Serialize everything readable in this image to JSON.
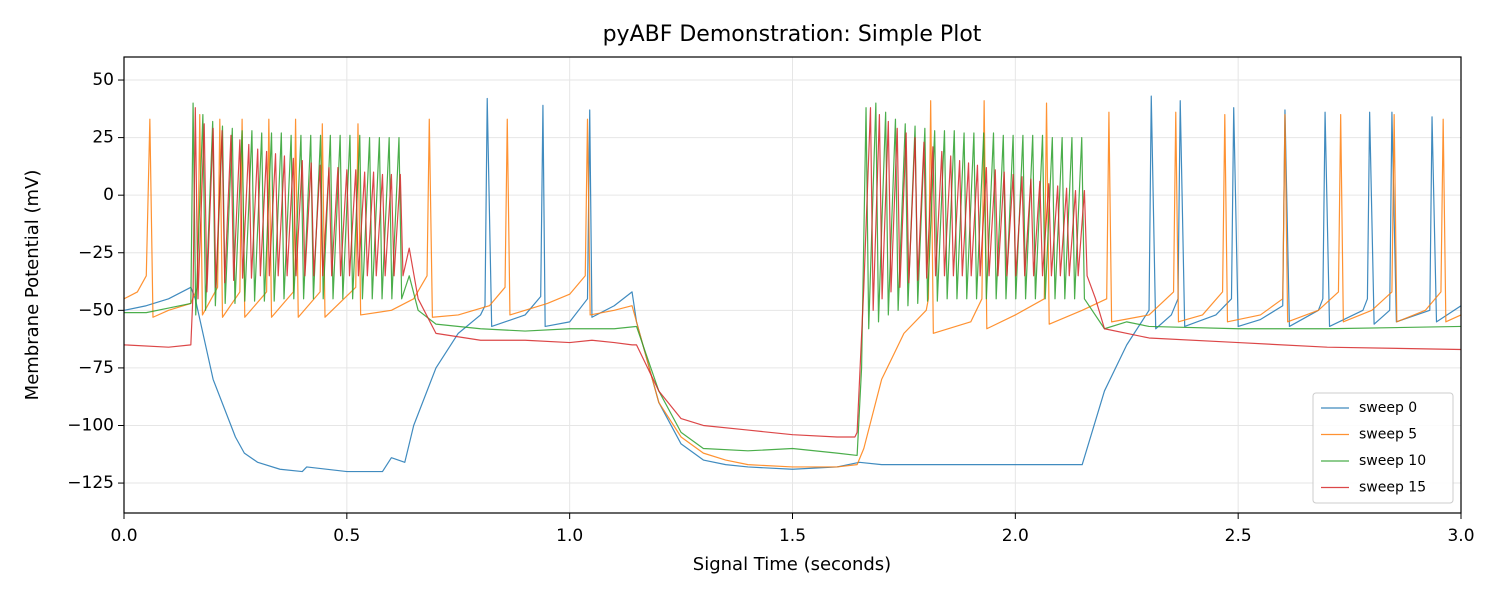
{
  "chart_data": {
    "type": "line",
    "title": "pyABF Demonstration: Simple Plot",
    "x_label": "Signal Time (seconds)",
    "y_label": "Membrane Potential (mV)",
    "xlim": [
      0,
      3
    ],
    "ylim": [
      -138,
      60
    ],
    "xticks": [
      {
        "value": 0,
        "label": "0.0"
      },
      0.5,
      {
        "value": 1,
        "label": "1.0"
      },
      1.5,
      {
        "value": 2,
        "label": "2.0"
      },
      2.5,
      {
        "value": 3,
        "label": "3.0"
      }
    ],
    "yticks": [
      {
        "value": -125,
        "label": "−125"
      },
      {
        "value": -100,
        "label": "−100"
      },
      {
        "value": -75,
        "label": "−75"
      },
      {
        "value": -50,
        "label": "−50"
      },
      {
        "value": -25,
        "label": "−25"
      },
      0,
      25,
      50
    ],
    "grid": true,
    "legend": "lower right",
    "series": [
      {
        "name": "sweep 0",
        "color": "#1f77b4",
        "x": [
          0,
          0.05,
          0.1,
          0.15,
          0.16,
          0.2,
          0.25,
          0.27,
          0.3,
          0.35,
          0.4,
          0.41,
          0.5,
          0.58,
          0.6,
          0.63,
          0.65,
          0.7,
          0.75,
          0.8,
          0.81,
          0.815,
          0.825,
          0.9,
          0.935,
          0.94,
          0.945,
          1.0,
          1.04,
          1.045,
          1.05,
          1.1,
          1.14,
          1.15,
          1.2,
          1.25,
          1.3,
          1.35,
          1.4,
          1.5,
          1.6,
          1.65,
          1.7,
          1.8,
          1.9,
          2.0,
          2.1,
          2.15,
          2.2,
          2.25,
          2.3,
          2.305,
          2.315,
          2.35,
          2.365,
          2.37,
          2.38,
          2.45,
          2.485,
          2.49,
          2.5,
          2.55,
          2.6,
          2.605,
          2.615,
          2.68,
          2.69,
          2.695,
          2.705,
          2.78,
          2.79,
          2.795,
          2.805,
          2.84,
          2.845,
          2.855,
          2.93,
          2.935,
          2.945,
          3.0
        ],
        "values": [
          -50,
          -48,
          -45,
          -40,
          -45,
          -80,
          -105,
          -112,
          -116,
          -119,
          -120,
          -118,
          -120,
          -120,
          -114,
          -116,
          -100,
          -75,
          -60,
          -52,
          -48,
          42,
          -57,
          -52,
          -44,
          39,
          -57,
          -55,
          -45,
          37,
          -53,
          -48,
          -42,
          -55,
          -90,
          -108,
          -115,
          -117,
          -118,
          -119,
          -118,
          -116,
          -117,
          -117,
          -117,
          -117,
          -117,
          -117,
          -85,
          -65,
          -50,
          43,
          -58,
          -52,
          -45,
          41,
          -57,
          -52,
          -45,
          38,
          -57,
          -54,
          -48,
          37,
          -57,
          -50,
          -45,
          36,
          -57,
          -50,
          -45,
          36,
          -56,
          -50,
          36,
          -55,
          -50,
          34,
          -55,
          -48
        ]
      },
      {
        "name": "sweep 5",
        "color": "#ff7f0e",
        "x": [
          0,
          0.03,
          0.05,
          0.058,
          0.065,
          0.1,
          0.15,
          0.165,
          0.17,
          0.176,
          0.21,
          0.215,
          0.221,
          0.26,
          0.265,
          0.271,
          0.32,
          0.325,
          0.331,
          0.38,
          0.385,
          0.391,
          0.44,
          0.445,
          0.451,
          0.52,
          0.525,
          0.531,
          0.6,
          0.65,
          0.68,
          0.685,
          0.692,
          0.75,
          0.82,
          0.855,
          0.86,
          0.866,
          0.9,
          0.95,
          1.0,
          1.035,
          1.04,
          1.046,
          1.1,
          1.14,
          1.15,
          1.2,
          1.25,
          1.3,
          1.35,
          1.4,
          1.5,
          1.6,
          1.645,
          1.66,
          1.7,
          1.75,
          1.8,
          1.805,
          1.81,
          1.816,
          1.9,
          1.925,
          1.93,
          1.936,
          2.0,
          2.065,
          2.07,
          2.076,
          2.15,
          2.205,
          2.21,
          2.216,
          2.3,
          2.355,
          2.36,
          2.366,
          2.42,
          2.465,
          2.47,
          2.476,
          2.55,
          2.6,
          2.605,
          2.611,
          2.68,
          2.725,
          2.73,
          2.736,
          2.8,
          2.845,
          2.85,
          2.856,
          2.92,
          2.955,
          2.96,
          2.966,
          3.0
        ],
        "values": [
          -45,
          -42,
          -35,
          33,
          -53,
          -50,
          -47,
          -40,
          35,
          -52,
          -40,
          33,
          -53,
          -42,
          33,
          -53,
          -42,
          33,
          -53,
          -42,
          33,
          -53,
          -42,
          31,
          -53,
          -40,
          31,
          -52,
          -50,
          -45,
          -35,
          33,
          -53,
          -52,
          -48,
          -40,
          33,
          -52,
          -50,
          -47,
          -43,
          -35,
          33,
          -52,
          -50,
          -48,
          -55,
          -90,
          -105,
          -112,
          -115,
          -117,
          -118,
          -118,
          -117,
          -110,
          -80,
          -60,
          -50,
          -45,
          41,
          -60,
          -55,
          -45,
          41,
          -58,
          -52,
          -45,
          40,
          -56,
          -50,
          -45,
          36,
          -55,
          -52,
          -42,
          36,
          -55,
          -52,
          -42,
          35,
          -55,
          -52,
          -45,
          35,
          -55,
          -50,
          -42,
          35,
          -55,
          -50,
          -42,
          35,
          -55,
          -50,
          -42,
          33,
          -55,
          -52
        ]
      },
      {
        "name": "sweep 10",
        "color": "#2ca02c",
        "x": [
          0,
          0.05,
          0.1,
          0.15,
          0.155,
          0.161,
          0.177,
          0.183,
          0.199,
          0.205,
          0.221,
          0.227,
          0.243,
          0.249,
          0.265,
          0.271,
          0.287,
          0.293,
          0.309,
          0.315,
          0.331,
          0.337,
          0.353,
          0.359,
          0.375,
          0.381,
          0.397,
          0.403,
          0.419,
          0.425,
          0.441,
          0.447,
          0.463,
          0.469,
          0.485,
          0.491,
          0.507,
          0.513,
          0.529,
          0.535,
          0.551,
          0.557,
          0.573,
          0.579,
          0.595,
          0.601,
          0.617,
          0.623,
          0.64,
          0.66,
          0.7,
          0.8,
          0.9,
          1.0,
          1.1,
          1.15,
          1.2,
          1.25,
          1.3,
          1.4,
          1.5,
          1.6,
          1.645,
          1.655,
          1.665,
          1.671,
          1.687,
          1.693,
          1.709,
          1.715,
          1.731,
          1.737,
          1.753,
          1.759,
          1.775,
          1.781,
          1.797,
          1.803,
          1.819,
          1.825,
          1.841,
          1.847,
          1.863,
          1.869,
          1.885,
          1.891,
          1.907,
          1.913,
          1.929,
          1.935,
          1.951,
          1.957,
          1.973,
          1.979,
          1.995,
          2.001,
          2.017,
          2.023,
          2.039,
          2.045,
          2.061,
          2.067,
          2.083,
          2.089,
          2.105,
          2.111,
          2.127,
          2.133,
          2.149,
          2.155,
          2.2,
          2.25,
          2.3,
          2.5,
          2.7,
          3.0
        ],
        "values": [
          -51,
          -51,
          -49,
          -47,
          40,
          -52,
          35,
          -50,
          32,
          -48,
          30,
          -47,
          29,
          -47,
          28,
          -46,
          28,
          -46,
          27,
          -46,
          27,
          -46,
          27,
          -45,
          26,
          -45,
          26,
          -45,
          26,
          -45,
          26,
          -45,
          26,
          -45,
          26,
          -45,
          26,
          -45,
          26,
          -45,
          25,
          -45,
          25,
          -45,
          25,
          -45,
          25,
          -45,
          -35,
          -50,
          -56,
          -58,
          -59,
          -58,
          -58,
          -57,
          -85,
          -103,
          -110,
          -111,
          -110,
          -112,
          -113,
          -75,
          38,
          -58,
          40,
          -55,
          36,
          -52,
          33,
          -50,
          31,
          -48,
          30,
          -47,
          29,
          -46,
          28,
          -46,
          28,
          -45,
          28,
          -45,
          27,
          -45,
          27,
          -45,
          27,
          -45,
          27,
          -45,
          26,
          -45,
          26,
          -45,
          26,
          -45,
          26,
          -45,
          26,
          -45,
          25,
          -45,
          25,
          -45,
          25,
          -45,
          25,
          -45,
          -58,
          -55,
          -57,
          -58,
          -58,
          -57
        ]
      },
      {
        "name": "sweep 15",
        "color": "#d62728",
        "x": [
          0,
          0.1,
          0.15,
          0.155,
          0.16,
          0.166,
          0.18,
          0.186,
          0.2,
          0.206,
          0.22,
          0.226,
          0.24,
          0.246,
          0.26,
          0.266,
          0.28,
          0.286,
          0.3,
          0.306,
          0.32,
          0.326,
          0.34,
          0.346,
          0.36,
          0.366,
          0.38,
          0.386,
          0.4,
          0.406,
          0.42,
          0.426,
          0.44,
          0.446,
          0.46,
          0.466,
          0.48,
          0.486,
          0.5,
          0.506,
          0.52,
          0.526,
          0.54,
          0.546,
          0.56,
          0.566,
          0.58,
          0.586,
          0.6,
          0.606,
          0.62,
          0.626,
          0.64,
          0.66,
          0.7,
          0.8,
          0.9,
          1.0,
          1.05,
          1.1,
          1.14,
          1.15,
          1.2,
          1.25,
          1.3,
          1.4,
          1.5,
          1.6,
          1.64,
          1.645,
          1.66,
          1.675,
          1.681,
          1.695,
          1.701,
          1.715,
          1.721,
          1.735,
          1.741,
          1.755,
          1.761,
          1.775,
          1.781,
          1.795,
          1.801,
          1.815,
          1.821,
          1.835,
          1.841,
          1.855,
          1.861,
          1.875,
          1.881,
          1.895,
          1.901,
          1.915,
          1.921,
          1.935,
          1.941,
          1.955,
          1.961,
          1.975,
          1.981,
          1.995,
          2.001,
          2.015,
          2.021,
          2.035,
          2.041,
          2.055,
          2.061,
          2.075,
          2.081,
          2.095,
          2.101,
          2.115,
          2.121,
          2.135,
          2.141,
          2.155,
          2.161,
          2.18,
          2.2,
          2.3,
          2.5,
          2.7,
          3.0
        ],
        "values": [
          -65,
          -66,
          -65,
          -42,
          38,
          -45,
          31,
          -42,
          29,
          -40,
          28,
          -38,
          26,
          -37,
          24,
          -36,
          22,
          -36,
          20,
          -35,
          19,
          -35,
          18,
          -35,
          17,
          -35,
          16,
          -35,
          15,
          -35,
          14,
          -35,
          13,
          -35,
          12,
          -35,
          12,
          -35,
          11,
          -35,
          11,
          -35,
          10,
          -35,
          10,
          -35,
          9,
          -35,
          9,
          -35,
          9,
          -35,
          -23,
          -45,
          -60,
          -63,
          -63,
          -64,
          -63,
          -64,
          -65,
          -65,
          -85,
          -97,
          -100,
          -102,
          -104,
          -105,
          -105,
          -103,
          -40,
          38,
          -50,
          35,
          -45,
          32,
          -42,
          29,
          -40,
          27,
          -38,
          25,
          -37,
          23,
          -36,
          21,
          -35,
          19,
          -35,
          17,
          -35,
          15,
          -35,
          14,
          -35,
          13,
          -35,
          12,
          -35,
          11,
          -35,
          10,
          -35,
          9,
          -35,
          8,
          -35,
          7,
          -35,
          6,
          -35,
          5,
          -35,
          4,
          -35,
          3,
          -35,
          2,
          -35,
          2,
          -35,
          -45,
          -58,
          -62,
          -64,
          -66,
          -67
        ]
      }
    ]
  }
}
